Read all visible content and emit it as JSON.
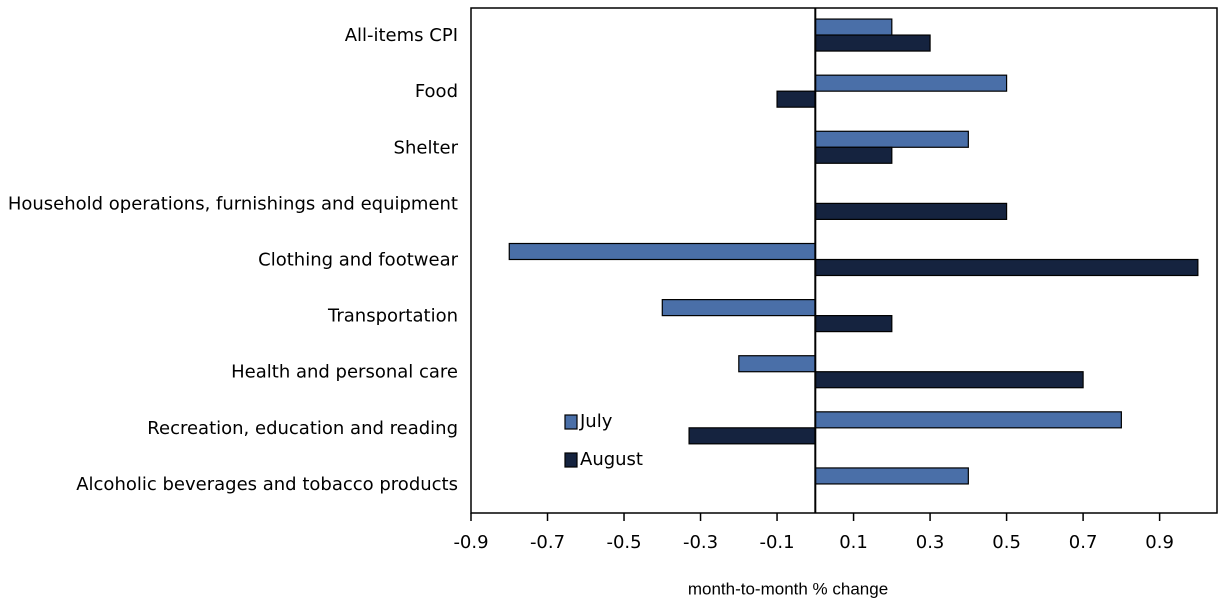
{
  "chart_data": {
    "type": "barh",
    "categories": [
      "All-items CPI",
      "Food",
      "Shelter",
      "Household operations, furnishings and equipment",
      "Clothing and footwear",
      "Transportation",
      "Health and personal care",
      "Recreation, education and reading",
      "Alcoholic beverages and tobacco products"
    ],
    "series": [
      {
        "name": "July",
        "color": "#4a6fa8",
        "values": [
          0.2,
          0.5,
          0.4,
          0,
          -0.8,
          -0.4,
          -0.2,
          0.8,
          0.4
        ]
      },
      {
        "name": "August",
        "color": "#15233f",
        "values": [
          0.3,
          -0.1,
          0.2,
          0.5,
          1.0,
          0.2,
          0.7,
          -0.33,
          0
        ]
      }
    ],
    "xlim": [
      -0.9,
      1.05
    ],
    "xticks": [
      -0.9,
      -0.7,
      -0.5,
      -0.3,
      -0.1,
      0.1,
      0.3,
      0.5,
      0.7,
      0.9
    ],
    "xlabel": "month-to-month % change",
    "legend": "lower-center"
  }
}
